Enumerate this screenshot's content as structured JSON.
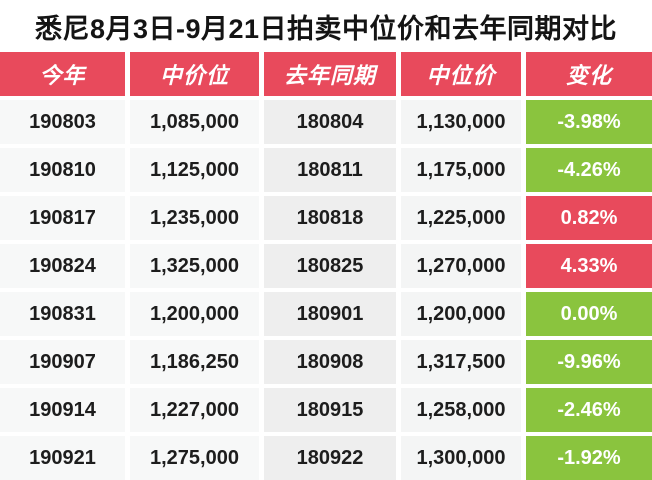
{
  "title": "悉尼8月3日-9月21日拍卖中位价和去年同期对比",
  "table": {
    "headers": [
      "今年",
      "中价位",
      "去年同期",
      "中位价",
      "变化"
    ],
    "rows": [
      {
        "this_year_date": "190803",
        "this_year_median": "1,085,000",
        "last_year_date": "180804",
        "last_year_median": "1,130,000",
        "change": "-3.98%",
        "direction": "down"
      },
      {
        "this_year_date": "190810",
        "this_year_median": "1,125,000",
        "last_year_date": "180811",
        "last_year_median": "1,175,000",
        "change": "-4.26%",
        "direction": "down"
      },
      {
        "this_year_date": "190817",
        "this_year_median": "1,235,000",
        "last_year_date": "180818",
        "last_year_median": "1,225,000",
        "change": "0.82%",
        "direction": "up"
      },
      {
        "this_year_date": "190824",
        "this_year_median": "1,325,000",
        "last_year_date": "180825",
        "last_year_median": "1,270,000",
        "change": "4.33%",
        "direction": "up"
      },
      {
        "this_year_date": "190831",
        "this_year_median": "1,200,000",
        "last_year_date": "180901",
        "last_year_median": "1,200,000",
        "change": "0.00%",
        "direction": "flat"
      },
      {
        "this_year_date": "190907",
        "this_year_median": "1,186,250",
        "last_year_date": "180908",
        "last_year_median": "1,317,500",
        "change": "-9.96%",
        "direction": "down"
      },
      {
        "this_year_date": "190914",
        "this_year_median": "1,227,000",
        "last_year_date": "180915",
        "last_year_median": "1,258,000",
        "change": "-2.46%",
        "direction": "down"
      },
      {
        "this_year_date": "190921",
        "this_year_median": "1,275,000",
        "last_year_date": "180922",
        "last_year_median": "1,300,000",
        "change": "-1.92%",
        "direction": "down"
      }
    ]
  },
  "colors": {
    "header_red": "#e84a5c",
    "increase_red": "#e84a5c",
    "decrease_green": "#8ac43e",
    "badge_color_rule": "green badge = decrease or no change, red badge = increase"
  },
  "chart_data": {
    "type": "table",
    "title": "悉尼8月3日-9月21日拍卖中位价和去年同期对比",
    "columns": [
      "今年",
      "中价位",
      "去年同期",
      "中位价",
      "变化"
    ],
    "rows": [
      [
        "190803",
        1085000,
        "180804",
        1130000,
        "-3.98%"
      ],
      [
        "190810",
        1125000,
        "180811",
        1175000,
        "-4.26%"
      ],
      [
        "190817",
        1235000,
        "180818",
        1225000,
        "0.82%"
      ],
      [
        "190824",
        1325000,
        "180825",
        1270000,
        "4.33%"
      ],
      [
        "190831",
        1200000,
        "180901",
        1200000,
        "0.00%"
      ],
      [
        "190907",
        1186250,
        "180908",
        1317500,
        "-9.96%"
      ],
      [
        "190914",
        1227000,
        "180915",
        1258000,
        "-2.46%"
      ],
      [
        "190921",
        1275000,
        "180922",
        1300000,
        "-1.92%"
      ]
    ]
  }
}
